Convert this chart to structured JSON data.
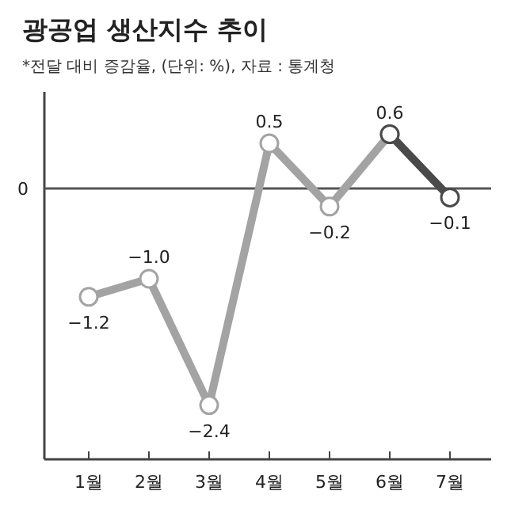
{
  "chart_data": {
    "type": "line",
    "title": "광공업 생산지수 추이",
    "subtitle": "*전달 대비 증감율, (단위: %), 자료 : 통계청",
    "categories": [
      "1월",
      "2월",
      "3월",
      "4월",
      "5월",
      "6월",
      "7월"
    ],
    "series": [
      {
        "color": "#a3a3a3",
        "values": [
          -1.2,
          -1.0,
          -2.4,
          0.5,
          -0.2,
          0.6,
          null
        ],
        "value_labels": [
          "−1.2",
          "−1.0",
          "−2.4",
          "0.5",
          "−0.2",
          "0.6",
          null
        ]
      },
      {
        "color": "#4a4a4a",
        "values": [
          null,
          null,
          null,
          null,
          null,
          0.6,
          -0.1
        ],
        "value_labels": [
          null,
          null,
          null,
          null,
          null,
          null,
          "−0.1"
        ]
      }
    ],
    "ylim": [
      -3.0,
      1.07
    ],
    "ref_lines": [
      {
        "axis": "y",
        "value": 0,
        "label": "0",
        "color": "#555555"
      }
    ],
    "marker": "circle",
    "line_style": "solid"
  }
}
